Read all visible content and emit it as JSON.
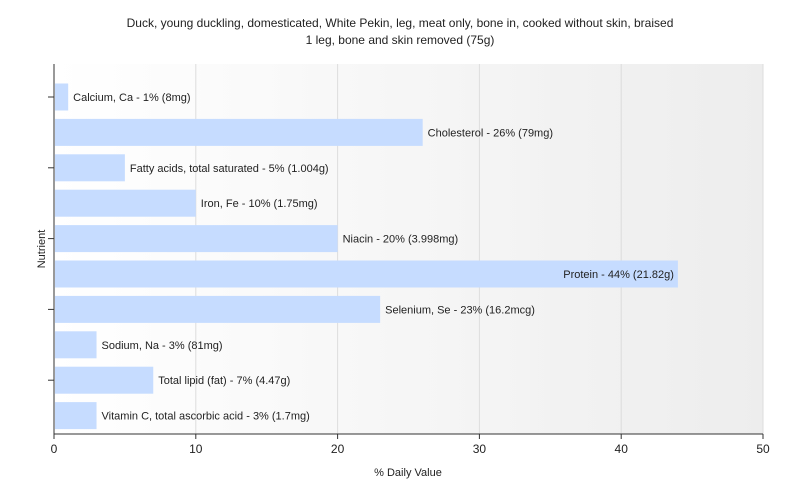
{
  "chart_data": {
    "type": "bar",
    "orientation": "horizontal",
    "title": "Duck, young duckling, domesticated, White Pekin, leg, meat only, bone in, cooked without skin, braised",
    "subtitle": "1 leg, bone and skin removed (75g)",
    "xlabel": "% Daily Value",
    "ylabel": "Nutrient",
    "xlim": [
      0,
      50
    ],
    "xticks": [
      0,
      10,
      20,
      30,
      40,
      50
    ],
    "grid": true,
    "bar_color": "#c6dcff",
    "categories": [
      "Calcium, Ca",
      "Cholesterol",
      "Fatty acids, total saturated",
      "Iron, Fe",
      "Niacin",
      "Protein",
      "Selenium, Se",
      "Sodium, Na",
      "Total lipid (fat)",
      "Vitamin C, total ascorbic acid"
    ],
    "values": [
      1,
      26,
      5,
      10,
      20,
      44,
      23,
      3,
      7,
      3
    ],
    "labels": [
      "Calcium, Ca - 1% (8mg)",
      "Cholesterol - 26% (79mg)",
      "Fatty acids, total saturated - 5% (1.004g)",
      "Iron, Fe - 10% (1.75mg)",
      "Niacin - 20% (3.998mg)",
      "Protein - 44% (21.82g)",
      "Selenium, Se - 23% (16.2mcg)",
      "Sodium, Na - 3% (81mg)",
      "Total lipid (fat) - 7% (4.47g)",
      "Vitamin C, total ascorbic acid - 3% (1.7mg)"
    ]
  }
}
